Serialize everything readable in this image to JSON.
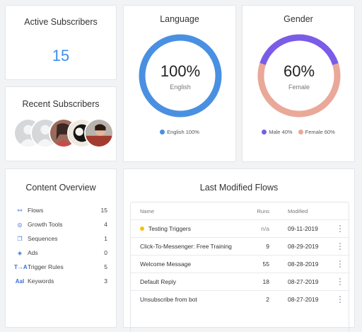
{
  "active_subscribers": {
    "title": "Active Subscribers",
    "count": "15"
  },
  "recent_subscribers": {
    "title": "Recent Subscribers"
  },
  "language": {
    "title": "Language",
    "percent": "100%",
    "label": "English",
    "value": 100,
    "color": "#4a90e2",
    "legend": [
      {
        "label": "English 100%",
        "color": "#4a90e2"
      }
    ]
  },
  "gender": {
    "title": "Gender",
    "percent": "60%",
    "label": "Female",
    "male_value": 40,
    "female_value": 60,
    "male_color": "#7b5ce6",
    "female_color": "#eaa898",
    "legend": [
      {
        "label": "Male 40%",
        "color": "#7b5ce6"
      },
      {
        "label": "Female 60%",
        "color": "#eaa898"
      }
    ]
  },
  "content_overview": {
    "title": "Content Overview",
    "items": [
      {
        "icon": "flows-icon",
        "glyph": "⚯",
        "label": "Flows",
        "count": "15"
      },
      {
        "icon": "growth-tools-icon",
        "glyph": "◎",
        "label": "Growth Tools",
        "count": "4"
      },
      {
        "icon": "sequences-icon",
        "glyph": "❐",
        "label": "Sequences",
        "count": "1"
      },
      {
        "icon": "ads-icon",
        "glyph": "◈",
        "label": "Ads",
        "count": "0"
      },
      {
        "icon": "trigger-rules-icon",
        "glyph": "T→A",
        "label": "Trigger Rules",
        "count": "5"
      },
      {
        "icon": "keywords-icon",
        "glyph": "AaI",
        "label": "Keywords",
        "count": "3"
      }
    ]
  },
  "flows": {
    "title": "Last Modified Flows",
    "columns": {
      "name": "Name",
      "runs": "Runs",
      "modified": "Modified"
    },
    "rows": [
      {
        "name": "Testing Triggers",
        "runs": "n/a",
        "modified": "09-11-2019",
        "dot": true
      },
      {
        "name": "Click-To-Messenger: Free Training",
        "runs": "9",
        "modified": "08-29-2019"
      },
      {
        "name": "Welcome Message",
        "runs": "55",
        "modified": "08-28-2019"
      },
      {
        "name": "Default Reply",
        "runs": "18",
        "modified": "08-27-2019"
      },
      {
        "name": "Unsubscribe from bot",
        "runs": "2",
        "modified": "08-27-2019"
      }
    ]
  }
}
